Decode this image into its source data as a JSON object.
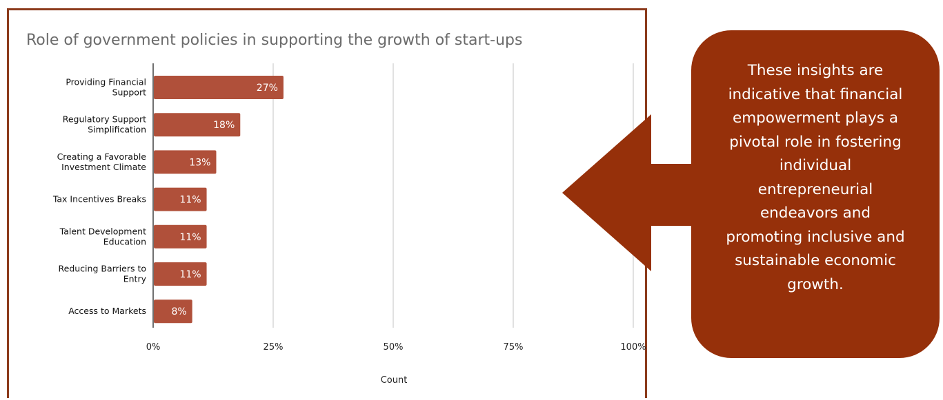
{
  "chart_data": {
    "type": "bar",
    "orientation": "horizontal",
    "title": "Role of government policies in supporting the growth of start-ups",
    "xlabel": "Count",
    "ylabel": "",
    "xlim": [
      0,
      100
    ],
    "grid": true,
    "legend": "none",
    "bar_color": "#b0503a",
    "categories": [
      [
        "Providing Financial",
        "Support"
      ],
      [
        "Regulatory Support",
        "Simplification"
      ],
      [
        "Creating a Favorable",
        "Investment Climate"
      ],
      [
        "Tax Incentives  Breaks"
      ],
      [
        "Talent Development",
        "Education"
      ],
      [
        "Reducing Barriers to",
        "Entry"
      ],
      [
        "Access to Markets"
      ]
    ],
    "values": [
      27,
      18,
      13,
      11,
      11,
      11,
      8
    ],
    "data_labels": [
      "27%",
      "18%",
      "13%",
      "11%",
      "11%",
      "11%",
      "8%"
    ],
    "ticks": [
      0,
      25,
      50,
      75,
      100
    ],
    "tick_labels": [
      "0%",
      "25%",
      "50%",
      "75%",
      "100%"
    ]
  },
  "callout": {
    "text": "These insights are indicative that financial empowerment plays a pivotal role in fostering individual entrepreneurial endeavors and promoting inclusive and sustainable economic growth.",
    "lines": [
      "These insights are",
      "indicative that financial",
      "empowerment plays a",
      "pivotal role in fostering",
      "individual",
      "entrepreneurial",
      "endeavors and",
      "promoting inclusive and",
      "sustainable economic",
      "growth."
    ],
    "fill_color": "#96300a",
    "text_color": "#ffffff"
  },
  "colors": {
    "frame": "#8c3b1c",
    "grid": "#d4d4d4",
    "title": "#6b6b6b"
  }
}
